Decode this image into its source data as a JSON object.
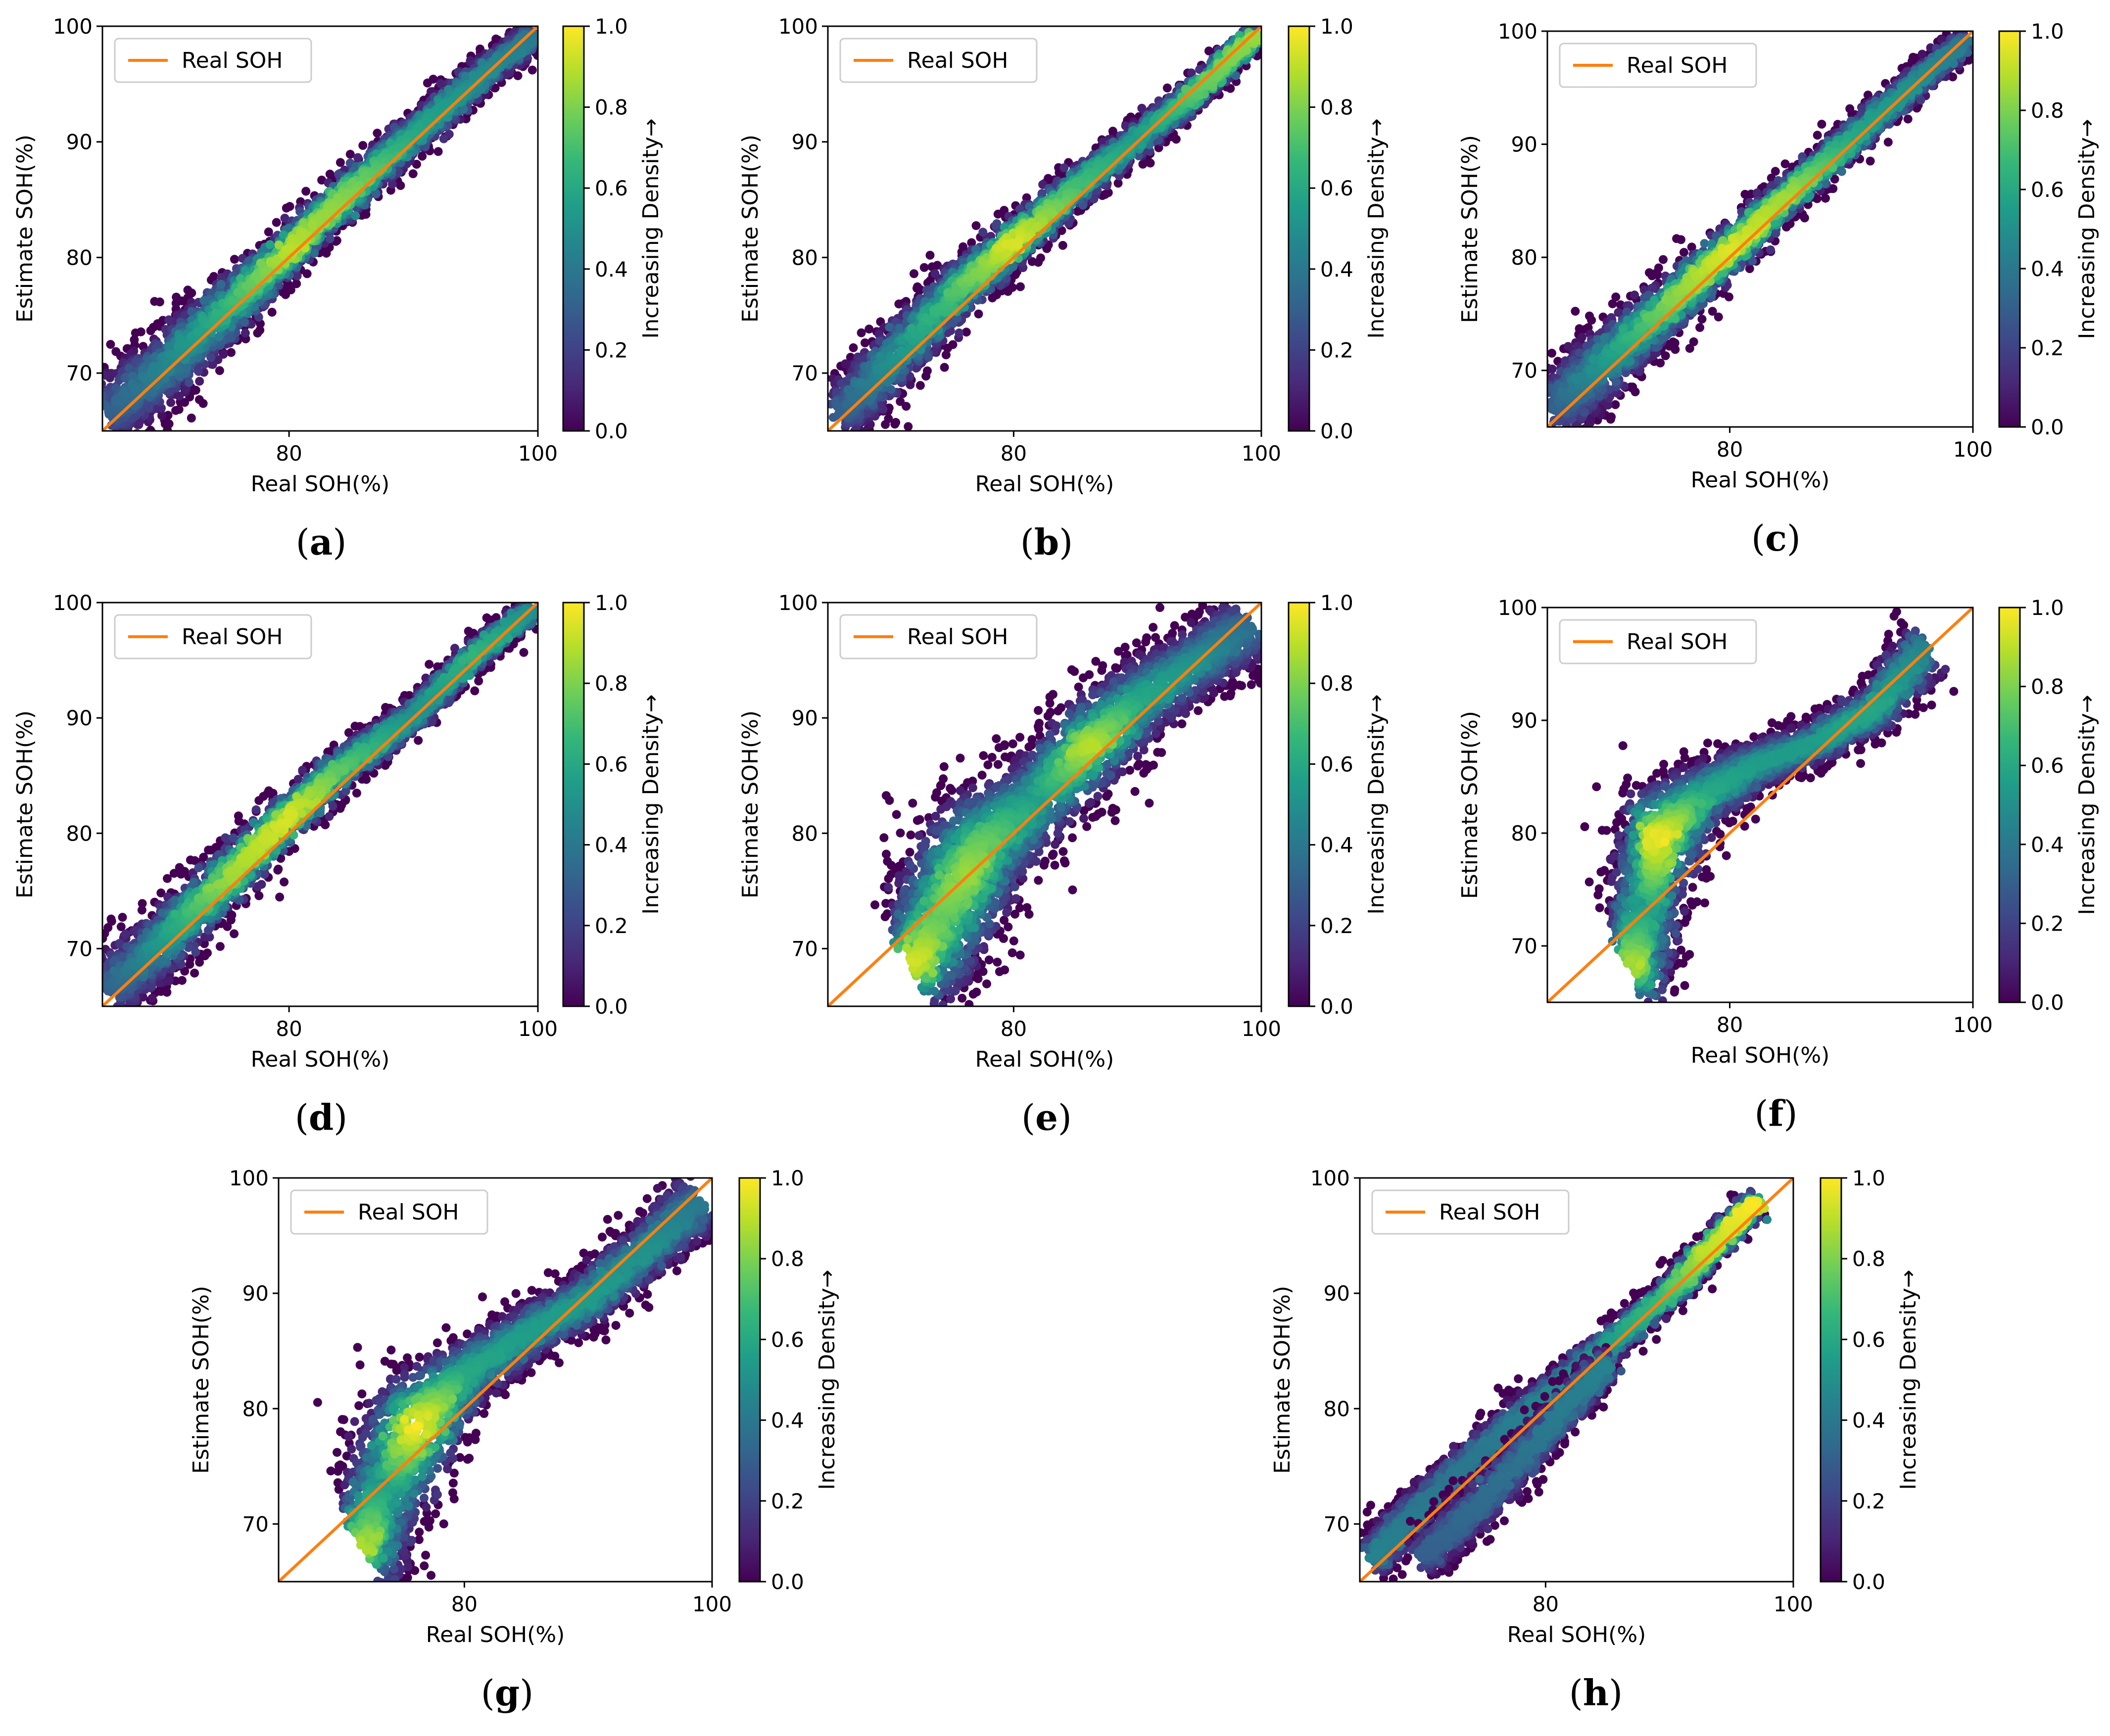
{
  "figure": {
    "description_free": true
  },
  "legend_label": "Real SOH",
  "colorbar_label": "Increasing Density→",
  "colorbar_ticks": [
    "0.0",
    "0.2",
    "0.4",
    "0.6",
    "0.8",
    "1.0"
  ],
  "colormap": [
    "#440154",
    "#482878",
    "#3e4989",
    "#31688e",
    "#26828e",
    "#1f9e89",
    "#35b779",
    "#6ece58",
    "#b5de2b",
    "#fde725"
  ],
  "colors": {
    "ideal_line": "#ff7f0e",
    "frame": "#000000"
  },
  "chart_data": [
    {
      "panel": "(a)",
      "type": "scatter",
      "xlabel": "Real SOH(%)",
      "ylabel": "Estimate SOH(%)",
      "xlim": [
        65,
        100
      ],
      "ylim": [
        65,
        100
      ],
      "xticks": [
        80,
        100
      ],
      "yticks": [
        70,
        80,
        90,
        100
      ],
      "ideal_line": [
        [
          65,
          65
        ],
        [
          100,
          100
        ]
      ],
      "trend": [
        [
          65.5,
          66.5,
          3.2,
          0.3
        ],
        [
          70,
          70.5,
          3.0,
          0.45
        ],
        [
          75,
          75.5,
          2.6,
          0.65
        ],
        [
          80,
          80.6,
          2.0,
          0.9
        ],
        [
          85,
          85.8,
          1.8,
          0.8
        ],
        [
          90,
          90.6,
          1.6,
          0.6
        ],
        [
          95,
          95.3,
          1.4,
          0.5
        ],
        [
          99.5,
          99.2,
          1.2,
          0.4
        ]
      ]
    },
    {
      "panel": "(b)",
      "type": "scatter",
      "xlabel": "Real SOH(%)",
      "ylabel": "Estimate SOH(%)",
      "xlim": [
        65,
        100
      ],
      "ylim": [
        65,
        100
      ],
      "xticks": [
        80,
        100
      ],
      "yticks": [
        70,
        80,
        90,
        100
      ],
      "ideal_line": [
        [
          65,
          65
        ],
        [
          100,
          100
        ]
      ],
      "trend": [
        [
          66,
          66.5,
          2.6,
          0.3
        ],
        [
          70,
          70.8,
          2.6,
          0.5
        ],
        [
          75,
          76.6,
          2.4,
          0.7
        ],
        [
          80,
          81.3,
          2.0,
          0.95
        ],
        [
          85,
          86.0,
          1.6,
          0.7
        ],
        [
          90,
          90.3,
          1.4,
          0.55
        ],
        [
          95,
          94.5,
          1.2,
          0.75
        ],
        [
          99.5,
          99.3,
          1.0,
          0.85
        ]
      ]
    },
    {
      "panel": "(c)",
      "type": "scatter",
      "xlabel": "Real SOH(%)",
      "ylabel": "Estimate SOH(%)",
      "xlim": [
        65,
        100
      ],
      "ylim": [
        65,
        100
      ],
      "xticks": [
        80,
        100
      ],
      "yticks": [
        70,
        80,
        90,
        100
      ],
      "ideal_line": [
        [
          65,
          65
        ],
        [
          100,
          100
        ]
      ],
      "trend": [
        [
          65.5,
          66.5,
          3.2,
          0.3
        ],
        [
          70,
          71.0,
          3.0,
          0.55
        ],
        [
          75,
          75.8,
          2.4,
          0.8
        ],
        [
          80,
          80.6,
          2.0,
          0.95
        ],
        [
          85,
          85.7,
          1.6,
          0.85
        ],
        [
          90,
          90.4,
          1.4,
          0.6
        ],
        [
          95,
          95.2,
          1.2,
          0.5
        ],
        [
          99.5,
          99.2,
          1.0,
          0.4
        ]
      ]
    },
    {
      "panel": "(d)",
      "type": "scatter",
      "xlabel": "Real SOH(%)",
      "ylabel": "Estimate SOH(%)",
      "xlim": [
        65,
        100
      ],
      "ylim": [
        65,
        100
      ],
      "xticks": [
        80,
        100
      ],
      "yticks": [
        70,
        80,
        90,
        100
      ],
      "ideal_line": [
        [
          65,
          65
        ],
        [
          100,
          100
        ]
      ],
      "trend": [
        [
          65.5,
          66.3,
          3.2,
          0.3
        ],
        [
          70,
          70.8,
          2.8,
          0.55
        ],
        [
          75,
          76.0,
          2.4,
          0.85
        ],
        [
          80,
          81.5,
          2.0,
          0.95
        ],
        [
          85,
          86.3,
          1.6,
          0.7
        ],
        [
          90,
          90.2,
          1.4,
          0.5
        ],
        [
          95,
          95.5,
          1.2,
          0.65
        ],
        [
          99.5,
          99.4,
          1.0,
          0.5
        ]
      ]
    },
    {
      "panel": "(e)",
      "type": "scatter",
      "xlabel": "Real SOH(%)",
      "ylabel": "Estimate SOH(%)",
      "xlim": [
        65,
        100
      ],
      "ylim": [
        65,
        100
      ],
      "xticks": [
        80,
        100
      ],
      "yticks": [
        70,
        80,
        90,
        100
      ],
      "ideal_line": [
        [
          65,
          65
        ],
        [
          100,
          100
        ]
      ],
      "trend": [
        [
          72,
          68.5,
          4.5,
          0.95
        ],
        [
          74,
          72.5,
          6.0,
          0.75
        ],
        [
          76,
          76.5,
          6.0,
          0.85
        ],
        [
          78,
          79.5,
          5.0,
          0.75
        ],
        [
          82,
          83.0,
          4.0,
          0.55
        ],
        [
          86,
          87.5,
          4.0,
          0.9
        ],
        [
          90,
          91.5,
          3.5,
          0.6
        ],
        [
          95,
          95.0,
          3.0,
          0.5
        ],
        [
          99,
          98.0,
          3.5,
          0.35
        ]
      ]
    },
    {
      "panel": "(f)",
      "type": "scatter",
      "xlabel": "Real SOH(%)",
      "ylabel": "Estimate SOH(%)",
      "xlim": [
        65,
        100
      ],
      "ylim": [
        65,
        100
      ],
      "xticks": [
        80,
        100
      ],
      "yticks": [
        70,
        80,
        90,
        100
      ],
      "ideal_line": [
        [
          65,
          65
        ],
        [
          100,
          100
        ]
      ],
      "trend": [
        [
          72,
          68.0,
          4.5,
          0.9
        ],
        [
          73,
          73.0,
          5.5,
          0.55
        ],
        [
          74,
          79.5,
          5.0,
          1.0
        ],
        [
          78,
          83.5,
          3.0,
          0.6
        ],
        [
          82,
          86.0,
          2.2,
          0.55
        ],
        [
          87,
          88.0,
          2.0,
          0.55
        ],
        [
          92,
          91.0,
          2.2,
          0.6
        ],
        [
          96,
          96.5,
          3.0,
          0.45
        ]
      ]
    },
    {
      "panel": "(g)",
      "type": "scatter",
      "xlabel": "Real SOH(%)",
      "ylabel": "Estimate SOH(%)",
      "xlim": [
        65,
        100
      ],
      "ylim": [
        65,
        100
      ],
      "xticks": [
        80,
        100
      ],
      "yticks": [
        70,
        80,
        90,
        100
      ],
      "ideal_line": [
        [
          65,
          65
        ],
        [
          100,
          100
        ]
      ],
      "trend": [
        [
          72,
          68.0,
          4.5,
          0.9
        ],
        [
          73.5,
          73.0,
          5.5,
          0.55
        ],
        [
          76,
          78.5,
          5.0,
          1.0
        ],
        [
          80,
          83.0,
          3.0,
          0.6
        ],
        [
          85,
          86.5,
          2.4,
          0.55
        ],
        [
          90,
          89.5,
          2.4,
          0.55
        ],
        [
          95,
          94.0,
          2.4,
          0.5
        ],
        [
          99,
          98.0,
          3.0,
          0.4
        ]
      ]
    },
    {
      "panel": "(h)",
      "type": "scatter",
      "xlabel": "Real SOH(%)",
      "ylabel": "Estimate SOH(%)",
      "xlim": [
        65,
        100
      ],
      "ylim": [
        65,
        100
      ],
      "xticks": [
        80,
        100
      ],
      "yticks": [
        70,
        80,
        90,
        100
      ],
      "ideal_line": [
        [
          65,
          65
        ],
        [
          100,
          100
        ]
      ],
      "trend": [
        [
          66,
          67.0,
          2.0,
          0.45
        ],
        [
          70,
          71.5,
          1.8,
          0.4
        ],
        [
          75,
          76.5,
          1.8,
          0.4
        ],
        [
          80,
          81.0,
          1.6,
          0.45
        ],
        [
          85,
          85.5,
          1.4,
          0.55
        ],
        [
          90,
          90.0,
          1.2,
          0.7
        ],
        [
          93,
          93.5,
          1.2,
          0.9
        ],
        [
          97,
          98.0,
          1.2,
          1.0
        ]
      ],
      "trend_lower": [
        [
          70,
          67.0,
          2.0,
          0.3
        ],
        [
          75,
          72.0,
          2.0,
          0.35
        ],
        [
          80,
          78.0,
          1.8,
          0.4
        ],
        [
          85,
          84.0,
          1.6,
          0.45
        ]
      ]
    }
  ]
}
